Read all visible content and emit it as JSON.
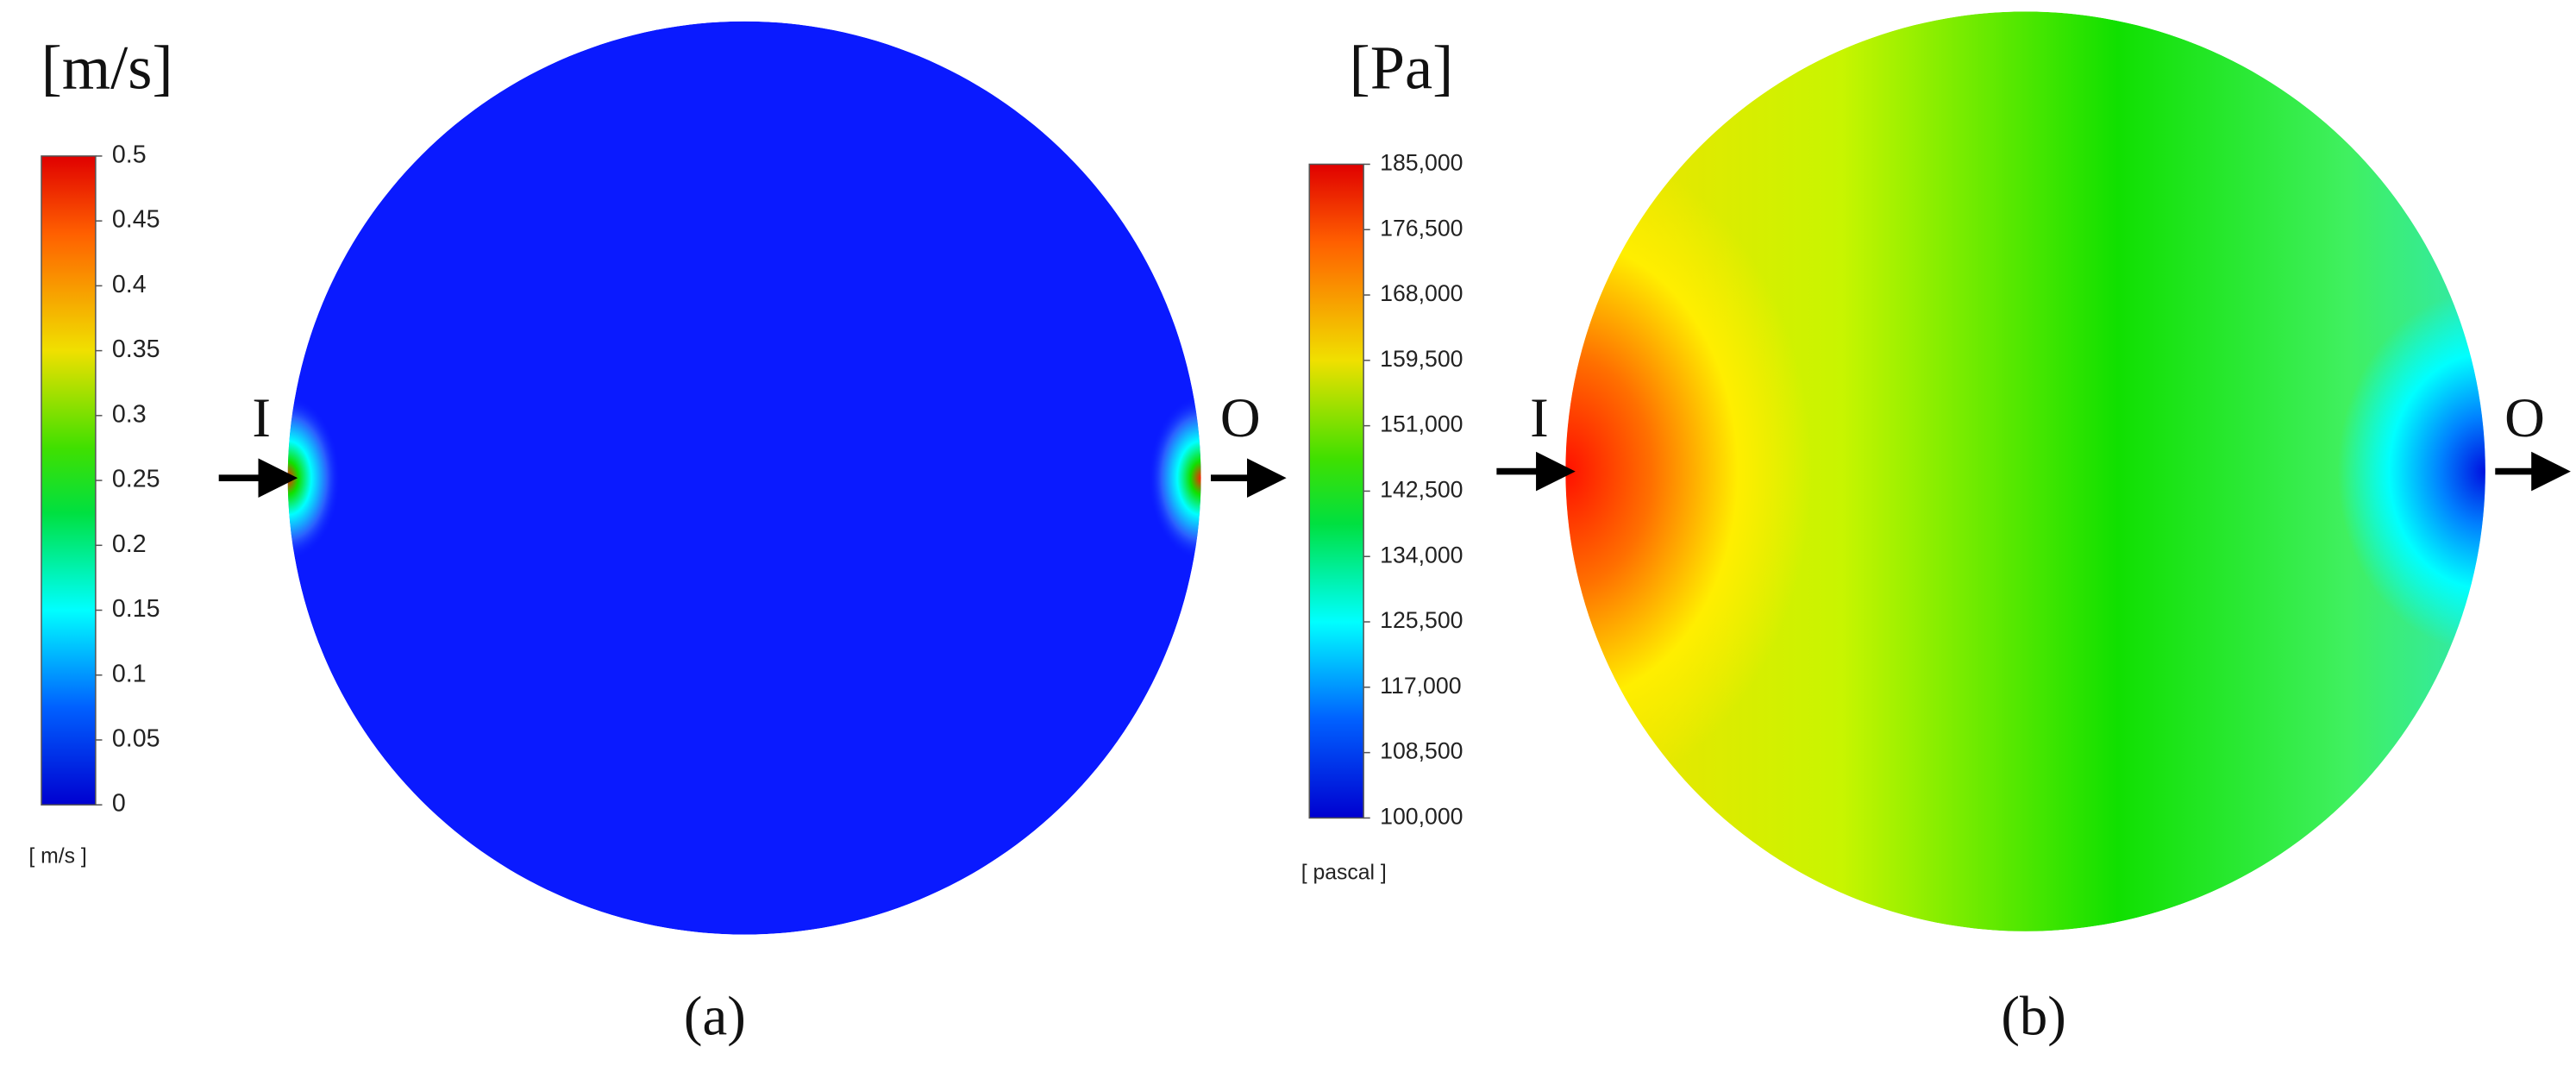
{
  "chart_data": [
    {
      "type": "contour",
      "title": "[m/s]",
      "colorbar_label": "[ m/s ]",
      "clim": [
        0,
        0.5
      ],
      "cticks": [
        0,
        0.05,
        0.1,
        0.15,
        0.2,
        0.25,
        0.3,
        0.35,
        0.4,
        0.45,
        0.5
      ],
      "inlet": "I",
      "outlet": "O",
      "caption": "(a)"
    },
    {
      "type": "contour",
      "title": "[Pa]",
      "colorbar_label": "[ pascal ]",
      "clim": [
        100000,
        185000
      ],
      "cticks": [
        {
          "value": 100000,
          "label": "100,000"
        },
        {
          "value": 108500,
          "label": "108,500"
        },
        {
          "value": 117000,
          "label": "117,000"
        },
        {
          "value": 125500,
          "label": "125,500"
        },
        {
          "value": 134000,
          "label": "134,000"
        },
        {
          "value": 142500,
          "label": "142,500"
        },
        {
          "value": 151000,
          "label": "151,000"
        },
        {
          "value": 159500,
          "label": "159,500"
        },
        {
          "value": 168000,
          "label": "168,000"
        },
        {
          "value": 176500,
          "label": "176,500"
        },
        {
          "value": 185000,
          "label": "185,000"
        }
      ],
      "inlet": "I",
      "outlet": "O",
      "caption": "(b)"
    }
  ]
}
